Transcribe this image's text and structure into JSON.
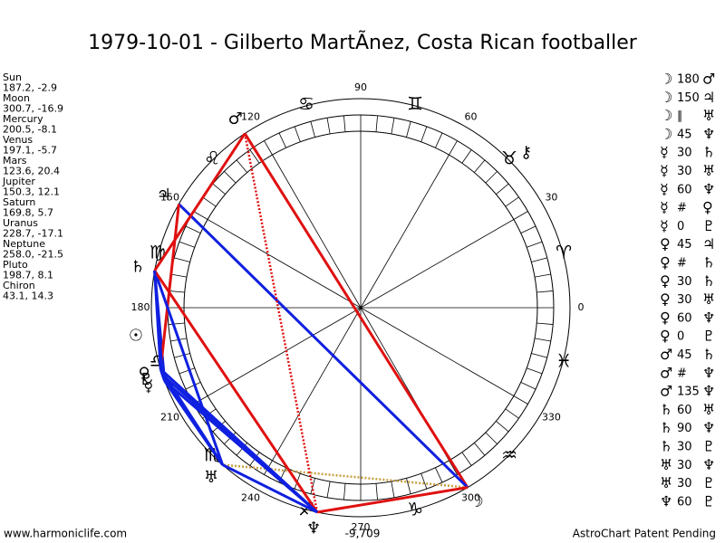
{
  "title": "1979-10-01 - Gilberto MartÃnez, Costa Rican footballer",
  "planets": [
    {
      "name": "Sun",
      "glyph": "☉",
      "position": "187.2, -2.9"
    },
    {
      "name": "Moon",
      "glyph": "☽",
      "position": "300.7, -16.9"
    },
    {
      "name": "Mercury",
      "glyph": "☿",
      "position": "200.5, -8.1"
    },
    {
      "name": "Venus",
      "glyph": "♀",
      "position": "197.1, -5.7"
    },
    {
      "name": "Mars",
      "glyph": "♂",
      "position": "123.6, 20.4"
    },
    {
      "name": "Jupiter",
      "glyph": "♃",
      "position": "150.3, 12.1"
    },
    {
      "name": "Saturn",
      "glyph": "♄",
      "position": "169.8, 5.7"
    },
    {
      "name": "Uranus",
      "glyph": "♅",
      "position": "228.7, -17.1"
    },
    {
      "name": "Neptune",
      "glyph": "♆",
      "position": "258.0, -21.5"
    },
    {
      "name": "Pluto",
      "glyph": "♇",
      "position": "198.7, 8.1"
    },
    {
      "name": "Chiron",
      "glyph": "⚷",
      "position": "43.1, 14.3"
    }
  ],
  "signs": [
    "♈",
    "♉",
    "♊",
    "♋",
    "♌",
    "♍",
    "♎",
    "♏",
    "♐",
    "♑",
    "♒",
    "♓"
  ],
  "degree_labels": [
    0,
    30,
    60,
    90,
    120,
    150,
    180,
    210,
    240,
    270,
    300,
    330
  ],
  "aspects": [
    {
      "from": "☽",
      "aspect": "180",
      "to": "♂",
      "color": "#e01010"
    },
    {
      "from": "☽",
      "aspect": "150",
      "to": "♃",
      "color": "#1020e0"
    },
    {
      "from": "☽",
      "aspect": "∥",
      "to": "♅",
      "color": "#c8a040",
      "dashed": true
    },
    {
      "from": "☽",
      "aspect": "45",
      "to": "♆",
      "color": "#e01010"
    },
    {
      "from": "☿",
      "aspect": "30",
      "to": "♄",
      "color": "#1020e0"
    },
    {
      "from": "☿",
      "aspect": "30",
      "to": "♅",
      "color": "#1020e0"
    },
    {
      "from": "☿",
      "aspect": "60",
      "to": "♆",
      "color": "#1020e0"
    },
    {
      "from": "☿",
      "aspect": "#",
      "to": "♀"
    },
    {
      "from": "☿",
      "aspect": "0",
      "to": "♇",
      "color": "#1020e0"
    },
    {
      "from": "♀",
      "aspect": "45",
      "to": "♃",
      "color": "#e01010"
    },
    {
      "from": "♀",
      "aspect": "#",
      "to": "♄"
    },
    {
      "from": "♀",
      "aspect": "30",
      "to": "♄",
      "color": "#1020e0"
    },
    {
      "from": "♀",
      "aspect": "30",
      "to": "♅",
      "color": "#1020e0"
    },
    {
      "from": "♀",
      "aspect": "60",
      "to": "♆",
      "color": "#1020e0"
    },
    {
      "from": "♀",
      "aspect": "0",
      "to": "♇",
      "color": "#1020e0"
    },
    {
      "from": "♂",
      "aspect": "45",
      "to": "♄",
      "color": "#e01010"
    },
    {
      "from": "♂",
      "aspect": "#",
      "to": "♆"
    },
    {
      "from": "♂",
      "aspect": "135",
      "to": "♆",
      "color": "#e01010",
      "dashed": true
    },
    {
      "from": "♄",
      "aspect": "60",
      "to": "♅",
      "color": "#1020e0"
    },
    {
      "from": "♄",
      "aspect": "90",
      "to": "♆",
      "color": "#e01010"
    },
    {
      "from": "♄",
      "aspect": "30",
      "to": "♇",
      "color": "#1020e0"
    },
    {
      "from": "♅",
      "aspect": "30",
      "to": "♆",
      "color": "#1020e0"
    },
    {
      "from": "♅",
      "aspect": "30",
      "to": "♇",
      "color": "#1020e0"
    },
    {
      "from": "♆",
      "aspect": "60",
      "to": "♇",
      "color": "#1020e0"
    }
  ],
  "footer": {
    "site": "www.harmoniclife.com",
    "score": "-9,709",
    "notice": "AstroChart Patent Pending"
  }
}
